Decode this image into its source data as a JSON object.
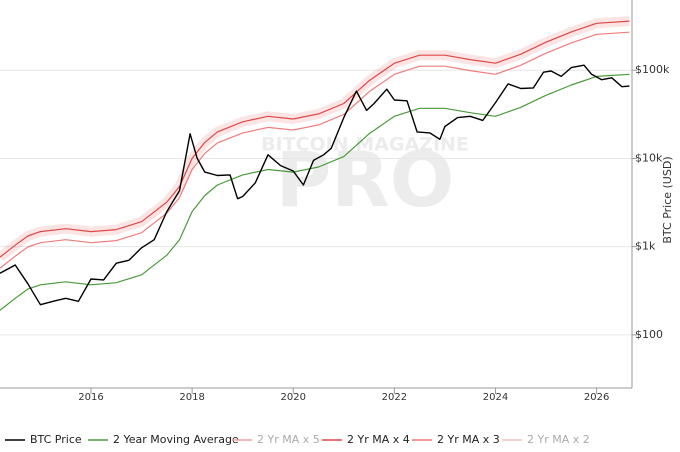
{
  "chart_data": {
    "type": "line",
    "watermark": "PRO",
    "watermark_small": "BITCOIN MAGAZINE",
    "y_label": "BTC Price (USD)",
    "log_y": true,
    "grid": true,
    "xlim": [
      2014.2,
      2026.7
    ],
    "xticks": [
      2016,
      2018,
      2020,
      2022,
      2024,
      2026
    ],
    "ylim": [
      25,
      625000
    ],
    "yticks": [
      {
        "value": 100,
        "label": "$100"
      },
      {
        "value": 1000,
        "label": "$1k"
      },
      {
        "value": 10000,
        "label": "$10k"
      },
      {
        "value": 100000,
        "label": "$100k"
      }
    ],
    "series": [
      {
        "name": "BTC Price",
        "color": "#000000",
        "visible": true,
        "x": [
          2014.2,
          2014.5,
          2014.75,
          2015.0,
          2015.25,
          2015.5,
          2015.75,
          2016.0,
          2016.25,
          2016.5,
          2016.75,
          2017.0,
          2017.25,
          2017.5,
          2017.75,
          2017.96,
          2018.1,
          2018.25,
          2018.5,
          2018.75,
          2018.9,
          2019.0,
          2019.25,
          2019.5,
          2019.75,
          2020.0,
          2020.2,
          2020.4,
          2020.6,
          2020.75,
          2021.0,
          2021.25,
          2021.45,
          2021.6,
          2021.85,
          2022.0,
          2022.25,
          2022.45,
          2022.7,
          2022.9,
          2023.0,
          2023.25,
          2023.5,
          2023.75,
          2024.0,
          2024.25,
          2024.5,
          2024.75,
          2024.95,
          2025.1,
          2025.3,
          2025.5,
          2025.75,
          2025.9,
          2026.1,
          2026.3,
          2026.5,
          2026.65
        ],
        "values": [
          500,
          620,
          380,
          220,
          240,
          260,
          240,
          430,
          420,
          650,
          700,
          970,
          1200,
          2500,
          4300,
          19000,
          10000,
          7000,
          6400,
          6500,
          3500,
          3700,
          5300,
          11000,
          8300,
          7200,
          5000,
          9500,
          11000,
          13000,
          29000,
          58000,
          35000,
          42000,
          61000,
          46000,
          45000,
          20000,
          19500,
          16500,
          23000,
          29000,
          30000,
          27000,
          43000,
          70000,
          62000,
          63000,
          95000,
          98000,
          85000,
          107000,
          114000,
          90000,
          78000,
          82000,
          65000,
          66000
        ]
      },
      {
        "name": "2 Year Moving Average",
        "color": "#4a9a3a",
        "visible": true,
        "x": [
          2014.2,
          2014.5,
          2014.75,
          2015.0,
          2015.5,
          2016.0,
          2016.5,
          2017.0,
          2017.5,
          2017.75,
          2018.0,
          2018.25,
          2018.5,
          2019.0,
          2019.5,
          2020.0,
          2020.5,
          2021.0,
          2021.5,
          2022.0,
          2022.5,
          2023.0,
          2023.5,
          2024.0,
          2024.5,
          2025.0,
          2025.5,
          2026.0,
          2026.65
        ],
        "values": [
          190,
          260,
          330,
          370,
          400,
          370,
          390,
          480,
          800,
          1200,
          2500,
          3800,
          5000,
          6500,
          7500,
          7000,
          8000,
          10500,
          19000,
          30000,
          37000,
          37000,
          33000,
          30000,
          38000,
          52000,
          68000,
          85000,
          90000
        ]
      },
      {
        "name": "2 Yr MA x 5",
        "color": "#f0a0a0",
        "visible": false
      },
      {
        "name": "2 Yr MA x 4",
        "color": "#e04848",
        "visible": true,
        "band": true,
        "x": [
          2014.2,
          2014.5,
          2014.75,
          2015.0,
          2015.5,
          2016.0,
          2016.5,
          2017.0,
          2017.5,
          2017.75,
          2018.0,
          2018.25,
          2018.5,
          2019.0,
          2019.5,
          2020.0,
          2020.5,
          2021.0,
          2021.5,
          2022.0,
          2022.5,
          2023.0,
          2023.5,
          2024.0,
          2024.5,
          2025.0,
          2025.5,
          2026.0,
          2026.65
        ],
        "values": [
          760,
          1040,
          1320,
          1480,
          1600,
          1480,
          1560,
          1920,
          3200,
          4800,
          10000,
          15200,
          20000,
          26000,
          30000,
          28000,
          32000,
          42000,
          76000,
          120000,
          148000,
          148000,
          132000,
          120000,
          152000,
          208000,
          272000,
          340000,
          360000
        ]
      },
      {
        "name": "2 Yr MA x 3",
        "color": "#f07c7c",
        "visible": true,
        "x": [
          2014.2,
          2014.5,
          2014.75,
          2015.0,
          2015.5,
          2016.0,
          2016.5,
          2017.0,
          2017.5,
          2017.75,
          2018.0,
          2018.25,
          2018.5,
          2019.0,
          2019.5,
          2020.0,
          2020.5,
          2021.0,
          2021.5,
          2022.0,
          2022.5,
          2023.0,
          2023.5,
          2024.0,
          2024.5,
          2025.0,
          2025.5,
          2026.0,
          2026.65
        ],
        "values": [
          570,
          780,
          990,
          1110,
          1200,
          1110,
          1170,
          1440,
          2400,
          3600,
          7500,
          11400,
          15000,
          19500,
          22500,
          21000,
          24000,
          31500,
          57000,
          90000,
          111000,
          111000,
          99000,
          90000,
          114000,
          156000,
          204000,
          255000,
          270000
        ]
      },
      {
        "name": "2 Yr MA x 2",
        "color": "#f5c0c0",
        "visible": false
      }
    ]
  }
}
